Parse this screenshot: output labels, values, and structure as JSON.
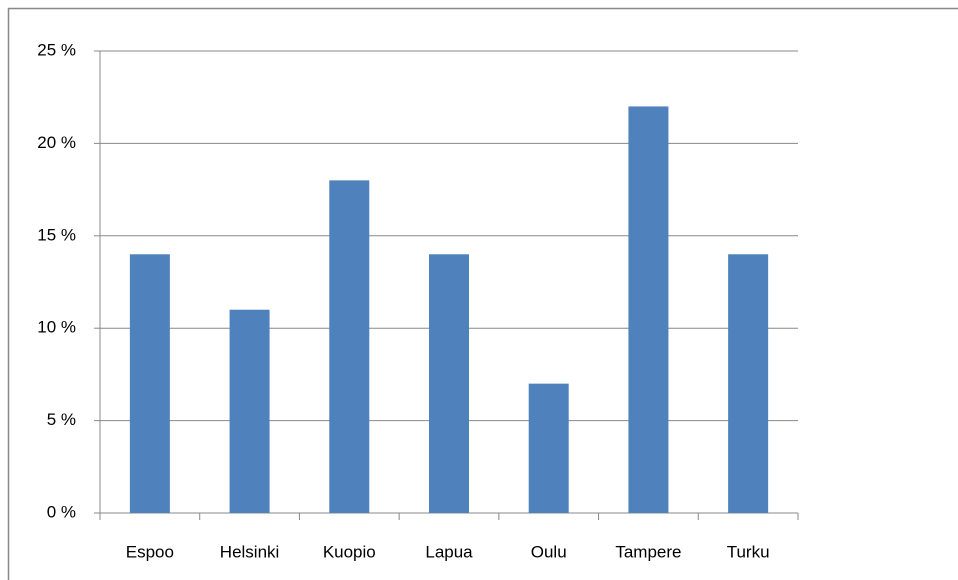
{
  "chart_data": {
    "type": "bar",
    "categories": [
      "Espoo",
      "Helsinki",
      "Kuopio",
      "Lapua",
      "Oulu",
      "Tampere",
      "Turku"
    ],
    "values": [
      14,
      11,
      18,
      14,
      7,
      22,
      14
    ],
    "color": "#4f81bd",
    "ylim": [
      0,
      25
    ],
    "yticks": [
      {
        "value": 0,
        "label": "0 %"
      },
      {
        "value": 5,
        "label": "5 %"
      },
      {
        "value": 10,
        "label": "10 %"
      },
      {
        "value": 15,
        "label": "15 %"
      },
      {
        "value": 20,
        "label": "20 %"
      },
      {
        "value": 25,
        "label": "25 %"
      }
    ],
    "grid": true
  }
}
